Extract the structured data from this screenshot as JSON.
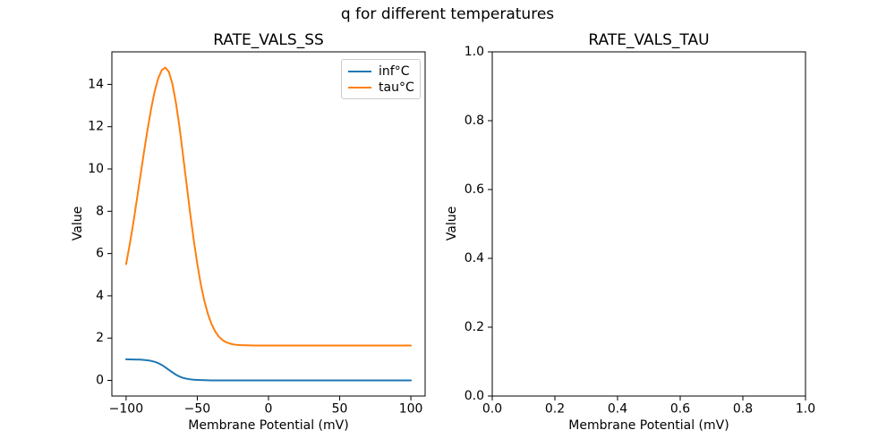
{
  "figure": {
    "title": "q for different temperatures",
    "background_color": "#ffffff",
    "text_color": "#000000",
    "axes_color": "#000000"
  },
  "legend": {
    "border_color": "#cccccc",
    "location": "upper right of left subplot"
  },
  "chart_data": [
    {
      "type": "line",
      "title": "RATE_VALS_SS",
      "xlabel": "Membrane Potential (mV)",
      "ylabel": "Value",
      "grid": false,
      "legend_position": "upper right",
      "xlim": [
        -110,
        110
      ],
      "ylim": [
        -0.74,
        15.54
      ],
      "x_ticks": [
        {
          "v": -100,
          "label": "−100"
        },
        {
          "v": -50,
          "label": "−50"
        },
        {
          "v": 0,
          "label": "0"
        },
        {
          "v": 50,
          "label": "50"
        },
        {
          "v": 100,
          "label": "100"
        }
      ],
      "y_ticks": [
        {
          "v": 0,
          "label": "0"
        },
        {
          "v": 2,
          "label": "2"
        },
        {
          "v": 4,
          "label": "4"
        },
        {
          "v": 6,
          "label": "6"
        },
        {
          "v": 8,
          "label": "8"
        },
        {
          "v": 10,
          "label": "10"
        },
        {
          "v": 12,
          "label": "12"
        },
        {
          "v": 14,
          "label": "14"
        }
      ],
      "series": [
        {
          "id": "inf",
          "name": "inf°C",
          "color": "#1f77b4",
          "points": [
            [
              -100,
              1.0
            ],
            [
              -95,
              0.99
            ],
            [
              -90,
              0.98
            ],
            [
              -85,
              0.95
            ],
            [
              -82.5,
              0.92
            ],
            [
              -80,
              0.88
            ],
            [
              -77.5,
              0.82
            ],
            [
              -75,
              0.73
            ],
            [
              -72.5,
              0.62
            ],
            [
              -70,
              0.5
            ],
            [
              -67.5,
              0.38
            ],
            [
              -65,
              0.27
            ],
            [
              -62.5,
              0.18
            ],
            [
              -60,
              0.12
            ],
            [
              -57.5,
              0.08
            ],
            [
              -55,
              0.05
            ],
            [
              -52.5,
              0.03
            ],
            [
              -50,
              0.02
            ],
            [
              -45,
              0.01
            ],
            [
              -40,
              0.0
            ],
            [
              -30,
              0.0
            ],
            [
              -20,
              0.0
            ],
            [
              -10,
              0.0
            ],
            [
              0,
              0.0
            ],
            [
              20,
              0.0
            ],
            [
              40,
              0.0
            ],
            [
              60,
              0.0
            ],
            [
              80,
              0.0
            ],
            [
              100,
              0.0
            ]
          ]
        },
        {
          "id": "tau",
          "name": "tau°C",
          "color": "#ff7f0e",
          "points": [
            [
              -100,
              5.5
            ],
            [
              -97.5,
              6.42
            ],
            [
              -95,
              7.43
            ],
            [
              -92.5,
              8.52
            ],
            [
              -90,
              9.65
            ],
            [
              -87.5,
              10.78
            ],
            [
              -85,
              11.85
            ],
            [
              -82.5,
              12.83
            ],
            [
              -80,
              13.65
            ],
            [
              -77.5,
              14.28
            ],
            [
              -75,
              14.67
            ],
            [
              -72.5,
              14.8
            ],
            [
              -70,
              14.6
            ],
            [
              -67.5,
              14.03
            ],
            [
              -65,
              13.12
            ],
            [
              -62.5,
              11.97
            ],
            [
              -60,
              10.65
            ],
            [
              -57.5,
              9.27
            ],
            [
              -55,
              7.9
            ],
            [
              -52.5,
              6.63
            ],
            [
              -50,
              5.5
            ],
            [
              -47.5,
              4.53
            ],
            [
              -45,
              3.75
            ],
            [
              -42.5,
              3.13
            ],
            [
              -40,
              2.66
            ],
            [
              -37.5,
              2.32
            ],
            [
              -35,
              2.08
            ],
            [
              -32.5,
              1.92
            ],
            [
              -30,
              1.81
            ],
            [
              -27.5,
              1.75
            ],
            [
              -25,
              1.71
            ],
            [
              -22.5,
              1.68
            ],
            [
              -20,
              1.67
            ],
            [
              -15,
              1.66
            ],
            [
              -10,
              1.65
            ],
            [
              0,
              1.65
            ],
            [
              20,
              1.65
            ],
            [
              40,
              1.65
            ],
            [
              60,
              1.65
            ],
            [
              80,
              1.65
            ],
            [
              100,
              1.65
            ]
          ]
        }
      ]
    },
    {
      "type": "line",
      "title": "RATE_VALS_TAU",
      "xlabel": "Membrane Potential (mV)",
      "ylabel": "Value",
      "grid": false,
      "xlim": [
        0,
        1
      ],
      "ylim": [
        0,
        1
      ],
      "x_ticks": [
        {
          "v": 0.0,
          "label": "0.0"
        },
        {
          "v": 0.2,
          "label": "0.2"
        },
        {
          "v": 0.4,
          "label": "0.4"
        },
        {
          "v": 0.6,
          "label": "0.6"
        },
        {
          "v": 0.8,
          "label": "0.8"
        },
        {
          "v": 1.0,
          "label": "1.0"
        }
      ],
      "y_ticks": [
        {
          "v": 0.0,
          "label": "0.0"
        },
        {
          "v": 0.2,
          "label": "0.2"
        },
        {
          "v": 0.4,
          "label": "0.4"
        },
        {
          "v": 0.6,
          "label": "0.6"
        },
        {
          "v": 0.8,
          "label": "0.8"
        },
        {
          "v": 1.0,
          "label": "1.0"
        }
      ],
      "series": []
    }
  ]
}
